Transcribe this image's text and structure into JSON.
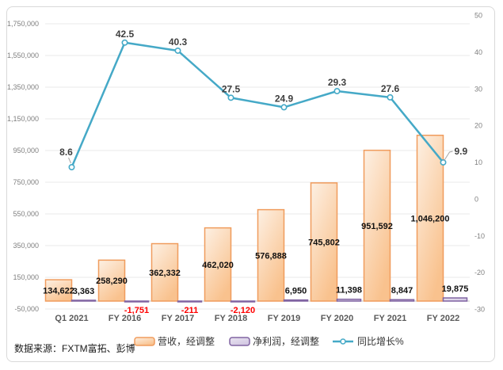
{
  "source": "数据来源：FXTM富拓、彭博",
  "colors": {
    "bar_revenue_border": "#f09c5d",
    "bar_revenue_fill_light": "#fdf0e3",
    "bar_revenue_fill_dark": "#f9c28e",
    "bar_profit_border": "#8064a2",
    "bar_profit_fill_light": "#eae5f1",
    "bar_profit_fill_dark": "#d2c7e2",
    "growth_line": "#45a9c7",
    "negative_label": "#ff0000",
    "gridline": "#e8e8e8",
    "axis_line": "#c9c9c9"
  },
  "chart_data": {
    "type": "combo",
    "categories": [
      "Q1 2021",
      "FY 2016",
      "FY 2017",
      "FY 2018",
      "FY 2019",
      "FY 2020",
      "FY 2021",
      "FY 2022"
    ],
    "series": [
      {
        "name": "营收，经调整",
        "type": "bar",
        "axis": "left",
        "values": [
          134622,
          258290,
          362332,
          462020,
          576888,
          745802,
          951592,
          1046200
        ],
        "labels": [
          "134,622",
          "258,290",
          "362,332",
          "462,020",
          "576,888",
          "745,802",
          "951,592",
          "1,046,200"
        ]
      },
      {
        "name": "净利润，经调整",
        "type": "bar",
        "axis": "left",
        "values": [
          3363,
          -1751,
          -211,
          -2120,
          6950,
          11398,
          8847,
          19875
        ],
        "labels": [
          "3,363",
          "-1,751",
          "-211",
          "-2,120",
          "6,950",
          "11,398",
          "8,847",
          "19,875"
        ]
      },
      {
        "name": "同比增长%",
        "type": "line",
        "axis": "right",
        "values": [
          8.6,
          42.5,
          40.3,
          27.5,
          24.9,
          29.3,
          27.6,
          9.9
        ],
        "labels": [
          "8.6",
          "42.5",
          "40.3",
          "27.5",
          "24.9",
          "29.3",
          "27.6",
          "9.9"
        ]
      }
    ],
    "left_axis": {
      "min": -50000,
      "max": 1750000,
      "step": 200000,
      "ticks": [
        "1,750,000",
        "1,550,000",
        "1,350,000",
        "1,150,000",
        "950,000",
        "750,000",
        "550,000",
        "350,000",
        "150,000",
        "-50,000"
      ]
    },
    "right_axis": {
      "min": -30,
      "max": 50,
      "step": 10,
      "ticks": [
        "50",
        "40",
        "30",
        "20",
        "10",
        "0",
        "-10",
        "-20",
        "-30"
      ]
    },
    "grid": true,
    "legend_position": "bottom"
  }
}
